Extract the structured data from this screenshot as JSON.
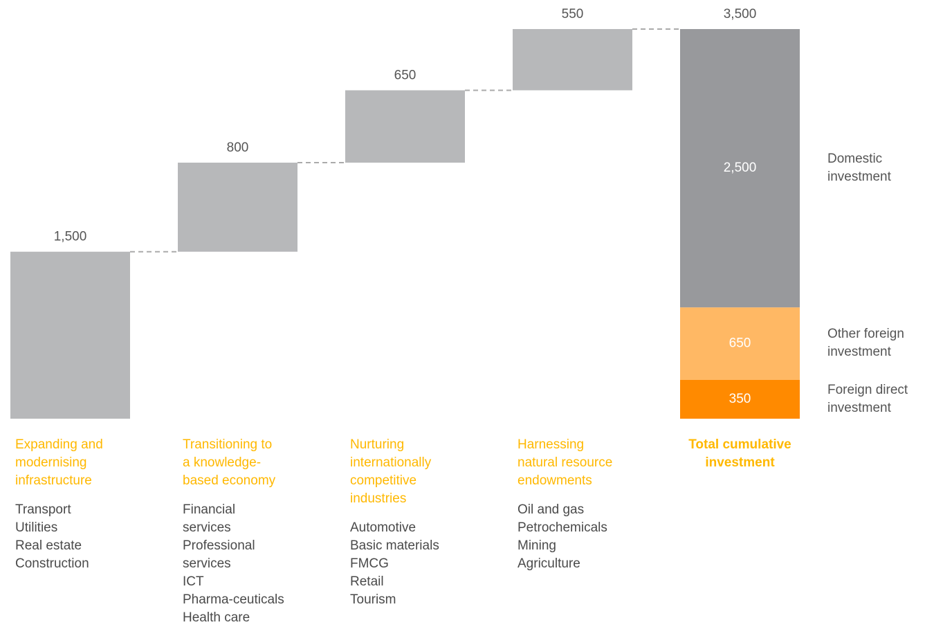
{
  "chart_data": {
    "type": "waterfall",
    "categories": [
      [
        "Expanding and",
        "modernising",
        "infrastructure"
      ],
      [
        "Transitioning to",
        "a knowledge-",
        "based economy"
      ],
      [
        "Nurturing",
        "internationally",
        "competitive",
        "industries"
      ],
      [
        "Harnessing",
        "natural resource",
        "endowments"
      ]
    ],
    "items": [
      [
        "Transport",
        "Utilities",
        "Real estate",
        "Construction"
      ],
      [
        "Financial",
        "services",
        "Professional",
        "services",
        "ICT",
        "Pharma-ceuticals",
        "Health care"
      ],
      [
        "Automotive",
        "Basic materials",
        "FMCG",
        "Retail",
        "Tourism"
      ],
      [
        "Oil and gas",
        "Petrochemicals",
        "Mining",
        "Agriculture"
      ]
    ],
    "values": [
      1500,
      800,
      650,
      550
    ],
    "value_labels": [
      "1,500",
      "800",
      "650",
      "550"
    ],
    "color": "#b7b8ba",
    "total": {
      "title": [
        "Total cumulative",
        "investment"
      ],
      "value": 3500,
      "value_label": "3,500",
      "series": [
        {
          "name": [
            "Foreign direct",
            "investment"
          ],
          "color": "#ff8a00",
          "value": 350,
          "value_label": "350"
        },
        {
          "name": [
            "Other foreign",
            "investment"
          ],
          "color": "#ffb864",
          "value": 650,
          "value_label": "650"
        },
        {
          "name": [
            "Domestic",
            "investment"
          ],
          "color": "#98999c",
          "value": 2500,
          "value_label": "2,500"
        }
      ]
    }
  }
}
